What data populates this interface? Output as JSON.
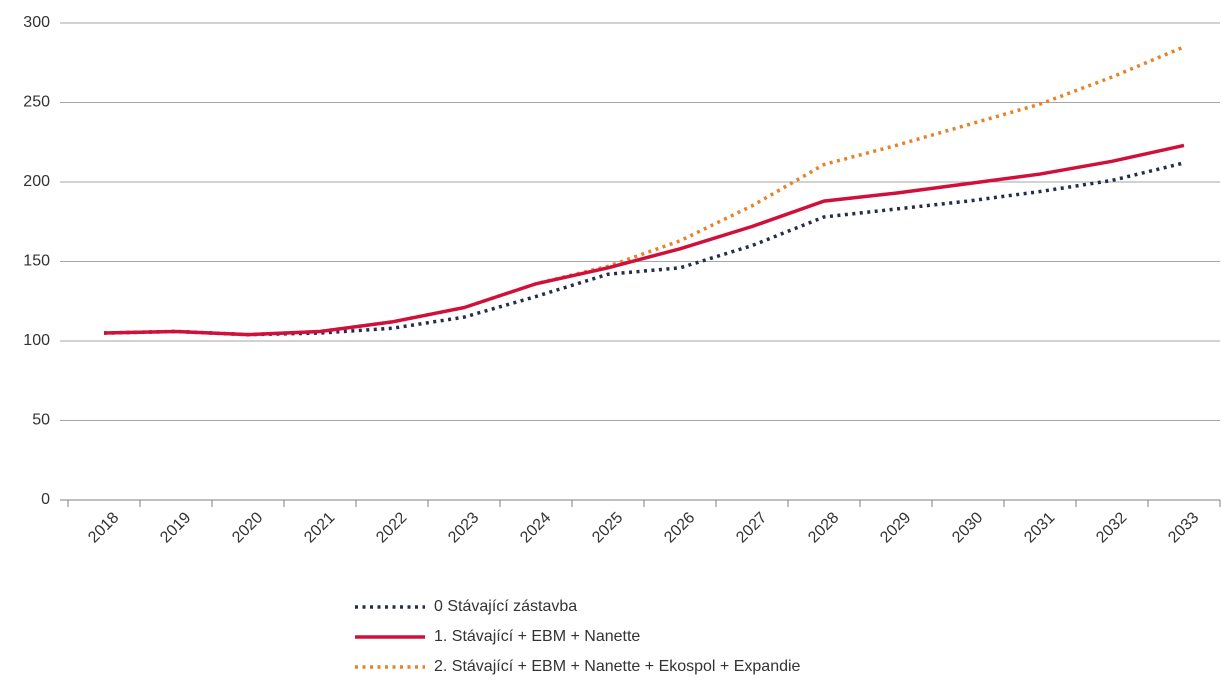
{
  "chart_data": {
    "type": "line",
    "categories": [
      "2018",
      "2019",
      "2020",
      "2021",
      "2022",
      "2023",
      "2024",
      "2025",
      "2026",
      "2027",
      "2028",
      "2029",
      "2030",
      "2031",
      "2032",
      "2033"
    ],
    "series": [
      {
        "name": "0 Stávající zástavba",
        "color": "#262c4d",
        "dash": "dotted",
        "values": [
          105,
          106,
          104,
          105,
          108,
          115,
          128,
          142,
          146,
          160,
          178,
          183,
          188,
          194,
          201,
          212
        ]
      },
      {
        "name": "1. Stávající + EBM + Nanette",
        "color": "#d0103a",
        "dash": "solid",
        "values": [
          105,
          106,
          104,
          106,
          112,
          121,
          136,
          146,
          158,
          172,
          188,
          193,
          199,
          205,
          213,
          223
        ]
      },
      {
        "name": "2. Stávající + EBM + Nanette + Ekospol + Expandie",
        "color": "#e8822a",
        "dash": "dotted",
        "values": [
          105,
          106,
          104,
          106,
          112,
          121,
          136,
          147,
          163,
          185,
          211,
          223,
          236,
          249,
          266,
          285
        ]
      }
    ],
    "ylim": [
      0,
      300
    ],
    "yticks": [
      0,
      50,
      100,
      150,
      200,
      250,
      300
    ],
    "grid": true
  }
}
